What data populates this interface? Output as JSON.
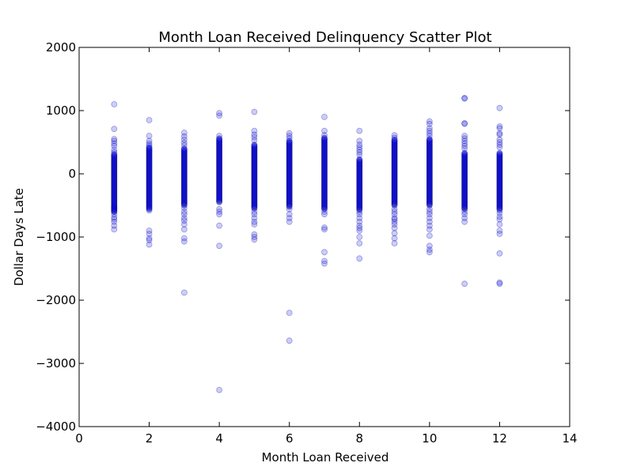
{
  "chart_data": {
    "type": "scatter",
    "title": "Month Loan Received Delinquency Scatter Plot",
    "xlabel": "Month Loan Received",
    "ylabel": "Dollar Days Late",
    "xlim": [
      0,
      14
    ],
    "ylim": [
      -4000,
      2000
    ],
    "xticks": [
      0,
      2,
      4,
      6,
      8,
      10,
      12,
      14
    ],
    "yticks": [
      -4000,
      -3000,
      -2000,
      -1000,
      0,
      1000,
      2000
    ],
    "xtick_labels": [
      "0",
      "2",
      "4",
      "6",
      "8",
      "10",
      "12",
      "14"
    ],
    "ytick_labels": [
      "−4000",
      "−3000",
      "−2000",
      "−1000",
      "0",
      "1000",
      "2000"
    ],
    "grid": false,
    "marker_color": "#0000ff",
    "marker_alpha": 0.2,
    "series": [
      {
        "x": 1,
        "core": [
          -600,
          300
        ],
        "points": [
          1100,
          710,
          550,
          520,
          480,
          440,
          380,
          340,
          310,
          -520,
          -560,
          -600,
          -640,
          -690,
          -720,
          -760,
          -820,
          -880
        ]
      },
      {
        "x": 2,
        "core": [
          -550,
          420
        ],
        "points": [
          850,
          600,
          520,
          480,
          450,
          -560,
          -580,
          -900,
          -950,
          -1020,
          -1050,
          -1120
        ]
      },
      {
        "x": 3,
        "core": [
          -500,
          400
        ],
        "points": [
          650,
          590,
          540,
          490,
          450,
          -540,
          -600,
          -640,
          -700,
          -740,
          -800,
          -880,
          -1020,
          -1070,
          -1880
        ]
      },
      {
        "x": 4,
        "core": [
          -450,
          560
        ],
        "points": [
          960,
          920,
          600,
          -560,
          -600,
          -640,
          -820,
          -1140,
          -3420
        ]
      },
      {
        "x": 5,
        "core": [
          -550,
          460
        ],
        "points": [
          980,
          680,
          620,
          580,
          530,
          -600,
          -640,
          -700,
          -760,
          -800,
          -960,
          -1000,
          -1040
        ]
      },
      {
        "x": 6,
        "core": [
          -520,
          520
        ],
        "points": [
          640,
          600,
          560,
          -560,
          -640,
          -700,
          -760,
          -2200,
          -2640
        ]
      },
      {
        "x": 7,
        "core": [
          -550,
          570
        ],
        "points": [
          900,
          680,
          610,
          -560,
          -600,
          -640,
          -850,
          -880,
          -1240,
          -1380,
          -1420
        ]
      },
      {
        "x": 8,
        "core": [
          -570,
          230
        ],
        "points": [
          680,
          520,
          460,
          420,
          380,
          340,
          300,
          -600,
          -640,
          -700,
          -760,
          -820,
          -860,
          -900,
          -1000,
          -1100,
          -1340
        ]
      },
      {
        "x": 9,
        "core": [
          -500,
          540
        ],
        "points": [
          610,
          570,
          -560,
          -600,
          -640,
          -700,
          -720,
          -760,
          -800,
          -860,
          -940,
          -1020,
          -1100
        ]
      },
      {
        "x": 10,
        "core": [
          -500,
          550
        ],
        "points": [
          830,
          790,
          720,
          680,
          640,
          600,
          -560,
          -600,
          -640,
          -700,
          -760,
          -820,
          -880,
          -980,
          -1140,
          -1200,
          -1240
        ]
      },
      {
        "x": 11,
        "core": [
          -560,
          330
        ],
        "points": [
          1200,
          1190,
          800,
          790,
          600,
          560,
          520,
          480,
          440,
          400,
          -600,
          -640,
          -700,
          -760,
          -1740
        ]
      },
      {
        "x": 12,
        "core": [
          -560,
          330
        ],
        "points": [
          1040,
          750,
          720,
          640,
          620,
          540,
          500,
          460,
          420,
          -580,
          -620,
          -680,
          -720,
          -800,
          -900,
          -950,
          -1260,
          -1720,
          -1740
        ]
      }
    ]
  }
}
